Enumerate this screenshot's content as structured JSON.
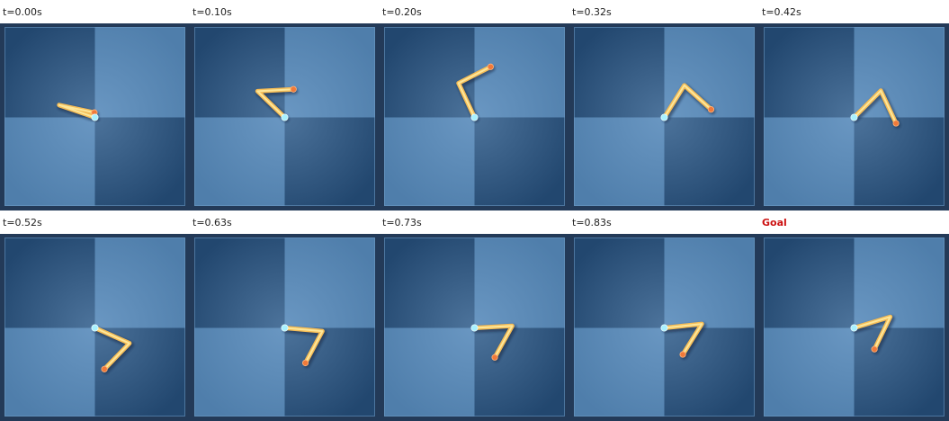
{
  "frames": [
    {
      "label": "t=0.00s",
      "theta1": 161,
      "theta2": -173,
      "is_goal": false
    },
    {
      "label": "t=0.10s",
      "theta1": 136,
      "theta2": -133,
      "is_goal": false
    },
    {
      "label": "t=0.20s",
      "theta1": 115,
      "theta2": -88,
      "is_goal": false
    },
    {
      "label": "t=0.32s",
      "theta1": 58,
      "theta2": -100,
      "is_goal": false
    },
    {
      "label": "t=0.42s",
      "theta1": 45,
      "theta2": -110,
      "is_goal": false
    },
    {
      "label": "t=0.52s",
      "theta1": -24,
      "theta2": -110,
      "is_goal": false
    },
    {
      "label": "t=0.63s",
      "theta1": -5,
      "theta2": -113,
      "is_goal": false
    },
    {
      "label": "t=0.73s",
      "theta1": 3,
      "theta2": -122,
      "is_goal": false
    },
    {
      "label": "t=0.83s",
      "theta1": 6,
      "theta2": -128,
      "is_goal": false
    },
    {
      "label": "Goal",
      "theta1": 17,
      "theta2": -133,
      "is_goal": true
    }
  ],
  "colors": {
    "background": "#ffffff",
    "frame_border": "#233a58",
    "tile_dark": "#22476f",
    "tile_light": "#4f7eab",
    "link": "#f5bd57",
    "link_core": "#fde79a",
    "base_joint": "#a8f1ff",
    "end_effector": "#f07a3a",
    "goal_label": "#cc1111"
  }
}
